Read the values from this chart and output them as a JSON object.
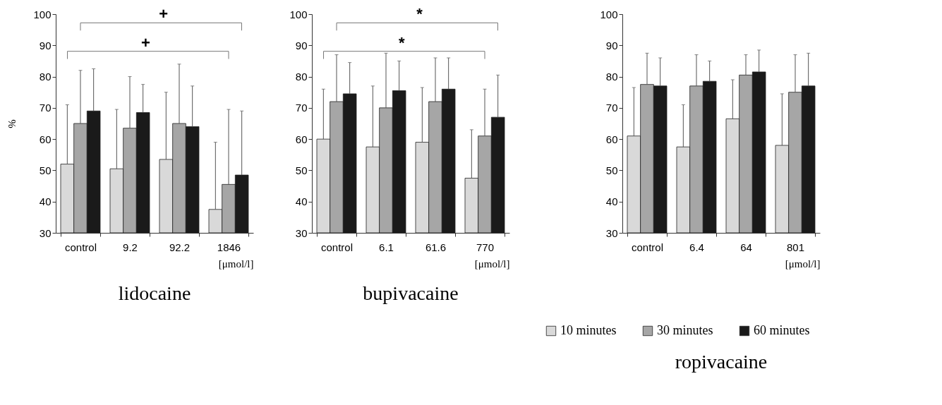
{
  "chart_data": [
    {
      "type": "bar",
      "title": "lidocaine",
      "xlabel": "[μmol/l]",
      "ylabel": "%",
      "categories": [
        "control",
        "9.2",
        "92.2",
        "1846"
      ],
      "ylim": [
        30,
        100
      ],
      "yticks": [
        30,
        40,
        50,
        60,
        70,
        80,
        90,
        100
      ],
      "grid": false,
      "annotations": [
        "+",
        "+"
      ],
      "series": [
        {
          "color": "#d9d9d9",
          "values": [
            52,
            50.5,
            53.5,
            37.5
          ],
          "errors": [
            [
              52,
              71
            ],
            [
              50.5,
              69.5
            ],
            [
              53.5,
              75
            ],
            [
              37.5,
              59
            ]
          ]
        },
        {
          "color": "#a6a6a6",
          "values": [
            65,
            63.5,
            65,
            45.5
          ],
          "errors": [
            [
              65,
              82
            ],
            [
              63.5,
              80
            ],
            [
              65,
              84
            ],
            [
              45.5,
              69.5
            ]
          ]
        },
        {
          "color": "#1a1a1a",
          "values": [
            69,
            68.5,
            64,
            48.5
          ],
          "errors": [
            [
              69,
              82.5
            ],
            [
              68.5,
              77.5
            ],
            [
              64,
              77
            ],
            [
              48.5,
              69
            ]
          ]
        }
      ]
    },
    {
      "type": "bar",
      "title": "bupivacaine",
      "xlabel": "[μmol/l]",
      "categories": [
        "control",
        "6.1",
        "61.6",
        "770"
      ],
      "ylim": [
        30,
        100
      ],
      "yticks": [
        30,
        40,
        50,
        60,
        70,
        80,
        90,
        100
      ],
      "grid": false,
      "annotations": [
        "*",
        "*"
      ],
      "series": [
        {
          "color": "#d9d9d9",
          "values": [
            60,
            57.5,
            59,
            47.5
          ],
          "errors": [
            [
              60,
              76
            ],
            [
              57.5,
              77
            ],
            [
              59,
              76.5
            ],
            [
              47.5,
              63
            ]
          ]
        },
        {
          "color": "#a6a6a6",
          "values": [
            72,
            70,
            72,
            61
          ],
          "errors": [
            [
              72,
              87
            ],
            [
              70,
              87.5
            ],
            [
              72,
              86
            ],
            [
              61,
              76
            ]
          ]
        },
        {
          "color": "#1a1a1a",
          "values": [
            74.5,
            75.5,
            76,
            67
          ],
          "errors": [
            [
              74.5,
              84.5
            ],
            [
              75.5,
              85
            ],
            [
              76,
              86
            ],
            [
              67,
              80.5
            ]
          ]
        }
      ]
    },
    {
      "type": "bar",
      "title": "ropivacaine",
      "xlabel": "[μmol/l]",
      "categories": [
        "control",
        "6.4",
        "64",
        "801"
      ],
      "ylim": [
        30,
        100
      ],
      "yticks": [
        30,
        40,
        50,
        60,
        70,
        80,
        90,
        100
      ],
      "grid": false,
      "legend": "bottom",
      "series": [
        {
          "name": "10 minutes",
          "color": "#d9d9d9",
          "values": [
            61,
            57.5,
            66.5,
            58
          ],
          "errors": [
            [
              61,
              76.5
            ],
            [
              57.5,
              71
            ],
            [
              66.5,
              79
            ],
            [
              58,
              74.5
            ]
          ]
        },
        {
          "name": "30 minutes",
          "color": "#a6a6a6",
          "values": [
            77.5,
            77,
            80.5,
            75
          ],
          "errors": [
            [
              77.5,
              87.5
            ],
            [
              77,
              87
            ],
            [
              80.5,
              87
            ],
            [
              75,
              87
            ]
          ]
        },
        {
          "name": "60 minutes",
          "color": "#1a1a1a",
          "values": [
            77,
            78.5,
            81.5,
            77
          ],
          "errors": [
            [
              77,
              86
            ],
            [
              78.5,
              85
            ],
            [
              81.5,
              88.5
            ],
            [
              77,
              87.5
            ]
          ]
        }
      ]
    }
  ]
}
